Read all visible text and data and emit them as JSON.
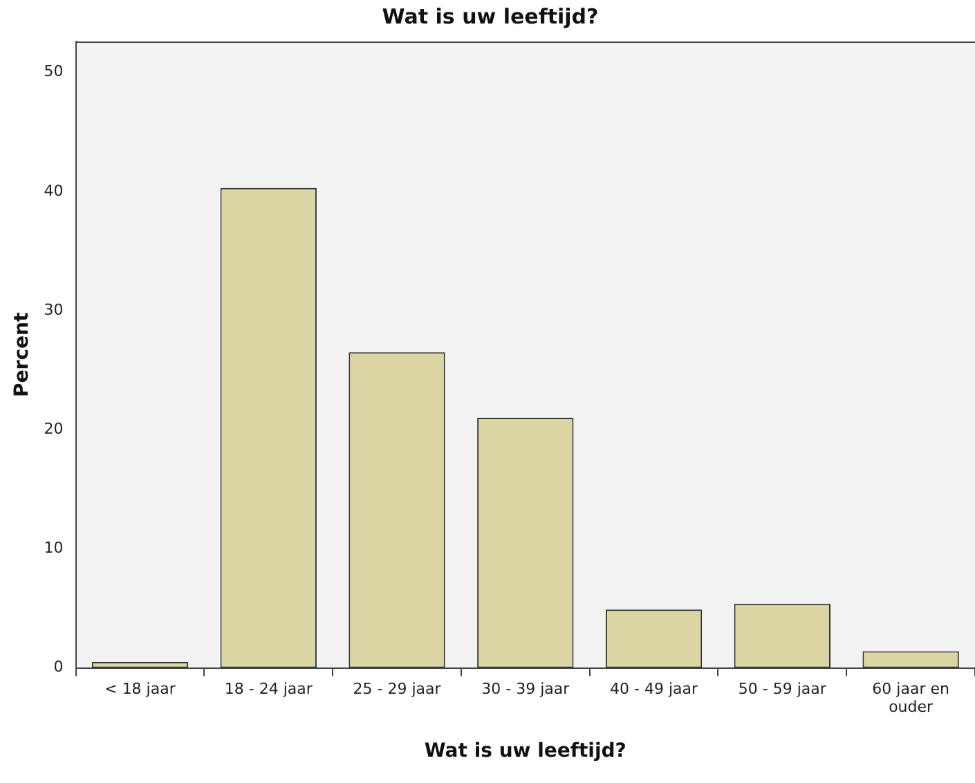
{
  "chart_data": {
    "type": "bar",
    "title": "Wat is uw leeftijd?",
    "xlabel": "Wat is uw leeftijd?",
    "ylabel": "Percent",
    "categories": [
      "< 18 jaar",
      "18 - 24 jaar",
      "25 - 29 jaar",
      "30 - 39 jaar",
      "40 - 49 jaar",
      "50 - 59 jaar",
      "60 jaar en ouder"
    ],
    "values": [
      0.5,
      40.3,
      26.5,
      21.0,
      4.9,
      5.4,
      1.4
    ],
    "color": "#dad5a3",
    "ylim": [
      0,
      52.6
    ],
    "yticks": [
      0,
      10,
      20,
      30,
      40,
      50
    ],
    "grid": false,
    "legend": false
  }
}
